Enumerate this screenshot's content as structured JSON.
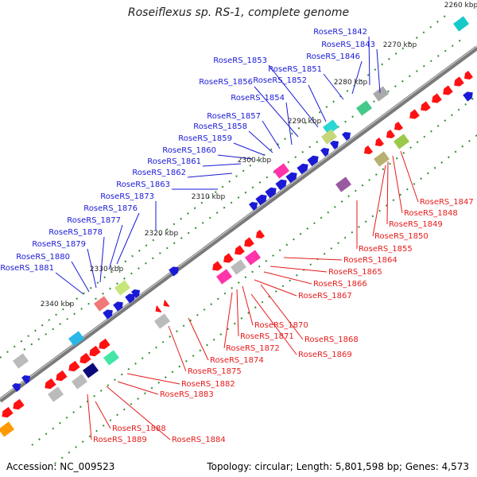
{
  "title": "Roseiflexus sp. RS-1, complete genome",
  "footer": {
    "accession": "Accession: NC_009523",
    "summary": "Topology: circular; Length: 5,801,598 bp; Genes: 4,573"
  },
  "kbp_ticks": [
    "2260 kbp",
    "2270 kbp",
    "2280 kbp",
    "2290 kbp",
    "2300 kbp",
    "2310 kbp",
    "2320 kbp",
    "2330 kbp",
    "2340 kbp"
  ],
  "colors": {
    "upper_label": "#1a1ad6",
    "lower_label": "#e61b1b",
    "backbone": "#7a7a7a",
    "forward_gene": "#1a1ad6",
    "reverse_gene": "#ff1111",
    "track_dots": "#2f8f2f"
  },
  "upper_genes": [
    "RoseRS_1842",
    "RoseRS_1843",
    "RoseRS_1846",
    "RoseRS_1851",
    "RoseRS_1852",
    "RoseRS_1853",
    "RoseRS_1856",
    "RoseRS_1854",
    "RoseRS_1857",
    "RoseRS_1858",
    "RoseRS_1859",
    "RoseRS_1860",
    "RoseRS_1861",
    "RoseRS_1862",
    "RoseRS_1863",
    "RoseRS_1873",
    "RoseRS_1876",
    "RoseRS_1877",
    "RoseRS_1878",
    "RoseRS_1879",
    "RoseRS_1880",
    "RoseRS_1881"
  ],
  "lower_genes": [
    "RoseRS_1847",
    "RoseRS_1848",
    "RoseRS_1849",
    "RoseRS_1850",
    "RoseRS_1855",
    "RoseRS_1864",
    "RoseRS_1865",
    "RoseRS_1866",
    "RoseRS_1867",
    "RoseRS_1870",
    "RoseRS_1871",
    "RoseRS_1872",
    "RoseRS_1868",
    "RoseRS_1874",
    "RoseRS_1869",
    "RoseRS_1875",
    "RoseRS_1882",
    "RoseRS_1883",
    "RoseRS_1888",
    "RoseRS_1889",
    "RoseRS_1884"
  ]
}
